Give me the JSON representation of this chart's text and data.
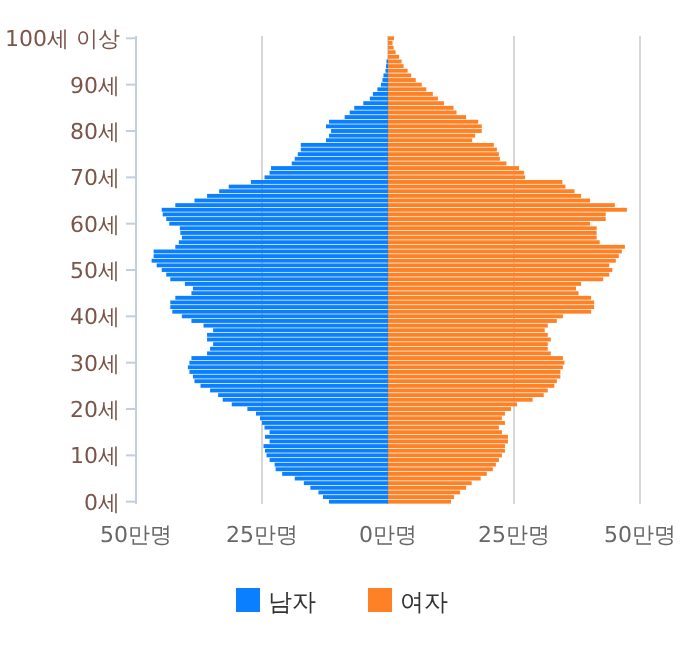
{
  "chart_data": {
    "type": "bar",
    "orientation": "horizontal",
    "stacked": true,
    "categories": [
      "100세 이상",
      null,
      null,
      null,
      null,
      null,
      null,
      null,
      null,
      null,
      "90세",
      null,
      null,
      null,
      null,
      null,
      null,
      null,
      null,
      null,
      "80세",
      null,
      null,
      null,
      null,
      null,
      null,
      null,
      null,
      null,
      "70세",
      null,
      null,
      null,
      null,
      null,
      null,
      null,
      null,
      null,
      "60세",
      null,
      null,
      null,
      null,
      null,
      null,
      null,
      null,
      null,
      "50세",
      null,
      null,
      null,
      null,
      null,
      null,
      null,
      null,
      null,
      "40세",
      null,
      null,
      null,
      null,
      null,
      null,
      null,
      null,
      null,
      "30세",
      null,
      null,
      null,
      null,
      null,
      null,
      null,
      null,
      null,
      "20세",
      null,
      null,
      null,
      null,
      null,
      null,
      null,
      null,
      null,
      "10세",
      null,
      null,
      null,
      null,
      null,
      null,
      null,
      null,
      null,
      "0세"
    ],
    "series": [
      {
        "name": "남자",
        "color": "#0a7fff",
        "values": [
          null,
          null,
          null,
          null,
          null,
          -0.3,
          -0.4,
          -0.5,
          -0.9,
          -1.1,
          -1.4,
          -2.1,
          -3,
          -3.6,
          -4.9,
          -6.7,
          -7.6,
          -8.6,
          -11.7,
          -12.3,
          -11.3,
          -11.7,
          -12.3,
          -17.3,
          -17.3,
          -17.9,
          -18.5,
          -19.1,
          -23.2,
          -23.5,
          -24.5,
          -27.2,
          -31.6,
          -33.5,
          -35.9,
          -38.4,
          -42.2,
          -44.9,
          -44.7,
          -44,
          -43.4,
          -41.3,
          -41.2,
          -40.9,
          -41.5,
          -42.2,
          -46.5,
          -46.5,
          -46.9,
          -45.9,
          -44.9,
          -44,
          -43.2,
          -40.3,
          -38.7,
          -39,
          -42.2,
          -43.2,
          -43.2,
          -42.8,
          -40.9,
          -39,
          -36.6,
          -34.7,
          -35.9,
          -35.9,
          -34.7,
          -35.3,
          -35.9,
          -39,
          -39.4,
          -39.7,
          -39.4,
          -38.7,
          -38.4,
          -37.2,
          -35.3,
          -33.7,
          -32.8,
          -31,
          -27.9,
          -26.2,
          -25.4,
          -25,
          -24.5,
          -23.5,
          -24.4,
          -23.5,
          -24.7,
          -24.4,
          -24.1,
          -23.5,
          -22.5,
          -22.3,
          -21,
          -18.5,
          -16.7,
          -15.4,
          -13.8,
          -12.9,
          -11.7
        ]
      },
      {
        "name": "여자",
        "color": "#ff8126",
        "values": [
          1.2,
          0.9,
          1.1,
          1.5,
          2.2,
          2.7,
          3.1,
          3.9,
          4.6,
          5.5,
          6.7,
          7.6,
          8.9,
          9.9,
          11.1,
          13,
          13.6,
          15.5,
          17.9,
          18.6,
          18.6,
          17.3,
          16.7,
          21,
          21.6,
          22,
          22.2,
          23.5,
          26,
          27,
          27.2,
          34.6,
          35.2,
          37,
          38.3,
          40.1,
          45,
          47.4,
          43.2,
          43.2,
          40.1,
          41.4,
          41.4,
          41.4,
          42,
          47,
          46.4,
          45.8,
          45.2,
          43.9,
          44.5,
          43.9,
          42.7,
          38.3,
          37.3,
          37.8,
          40.3,
          40.9,
          40.9,
          40.3,
          34.7,
          33.5,
          31.7,
          31.1,
          31.7,
          32.3,
          31.7,
          31.7,
          32.3,
          34.7,
          35,
          34.7,
          34.2,
          34.2,
          33.5,
          33,
          31.7,
          30.9,
          28.7,
          25.6,
          24.4,
          23.2,
          22.6,
          23.2,
          22,
          22.6,
          23.8,
          23.8,
          23.2,
          23.2,
          22.6,
          22,
          21.4,
          20.8,
          19.6,
          18.4,
          16.6,
          15.5,
          14.3,
          13.1,
          12.5
        ]
      }
    ],
    "xlim": [
      -50,
      50
    ],
    "xticks": [
      {
        "value": -50,
        "label": "50만명"
      },
      {
        "value": -25,
        "label": "25만명"
      },
      {
        "value": 0,
        "label": "0만명"
      },
      {
        "value": 25,
        "label": "25만명"
      },
      {
        "value": 50,
        "label": "50만명"
      }
    ],
    "grid": "x",
    "legend": "bottom"
  }
}
